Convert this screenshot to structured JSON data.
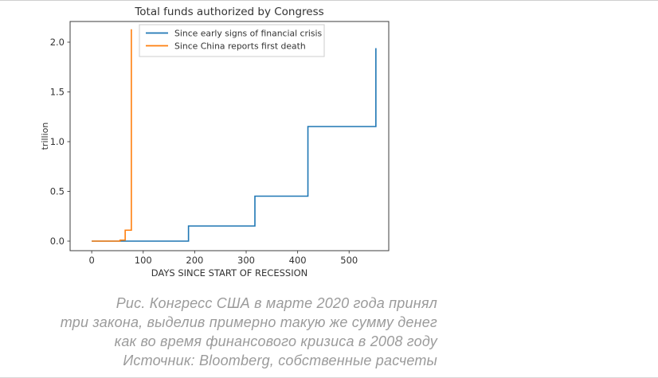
{
  "chart": {
    "title": "Total funds authorized by Congress",
    "xlabel": "DAYS SINCE START OF RECESSION",
    "ylabel": "trillion",
    "text_color": "#333333",
    "spine_color": "#3c3c3c",
    "legend_border_color": "#cccccc",
    "legend_items": [
      {
        "label": "Since early signs of financial crisis",
        "color": "#1f77b4"
      },
      {
        "label": "Since China reports first death",
        "color": "#ff7f0e"
      }
    ]
  },
  "chart_data": {
    "type": "line",
    "step": "post",
    "title": "Total funds authorized by Congress",
    "xlabel": "DAYS SINCE START OF RECESSION",
    "ylabel": "trillion",
    "xlim": [
      -42,
      577
    ],
    "ylim": [
      -0.096,
      2.208
    ],
    "xticks": [
      0,
      100,
      200,
      300,
      400,
      500
    ],
    "yticks": [
      0.0,
      0.5,
      1.0,
      1.5,
      2.0
    ],
    "grid": false,
    "legend_position": "upper left",
    "series": [
      {
        "name": "Since early signs of financial crisis",
        "color": "#1f77b4",
        "points": [
          [
            0,
            0.0
          ],
          [
            188,
            0.152
          ],
          [
            317,
            0.452
          ],
          [
            420,
            1.152
          ],
          [
            552,
            1.94
          ]
        ]
      },
      {
        "name": "Since China reports first death",
        "color": "#ff7f0e",
        "points": [
          [
            0,
            0.0
          ],
          [
            55,
            0.01
          ],
          [
            65,
            0.11
          ],
          [
            77,
            2.13
          ]
        ]
      }
    ]
  },
  "caption": {
    "color": "#9b9b9b",
    "lines": [
      "Рис. Конгресс США в марте 2020 года принял",
      "три закона, выделив примерно такую же сумму денег",
      "как во время финансового кризиса в 2008 году",
      "Источник: Bloomberg, собственные расчеты"
    ]
  }
}
